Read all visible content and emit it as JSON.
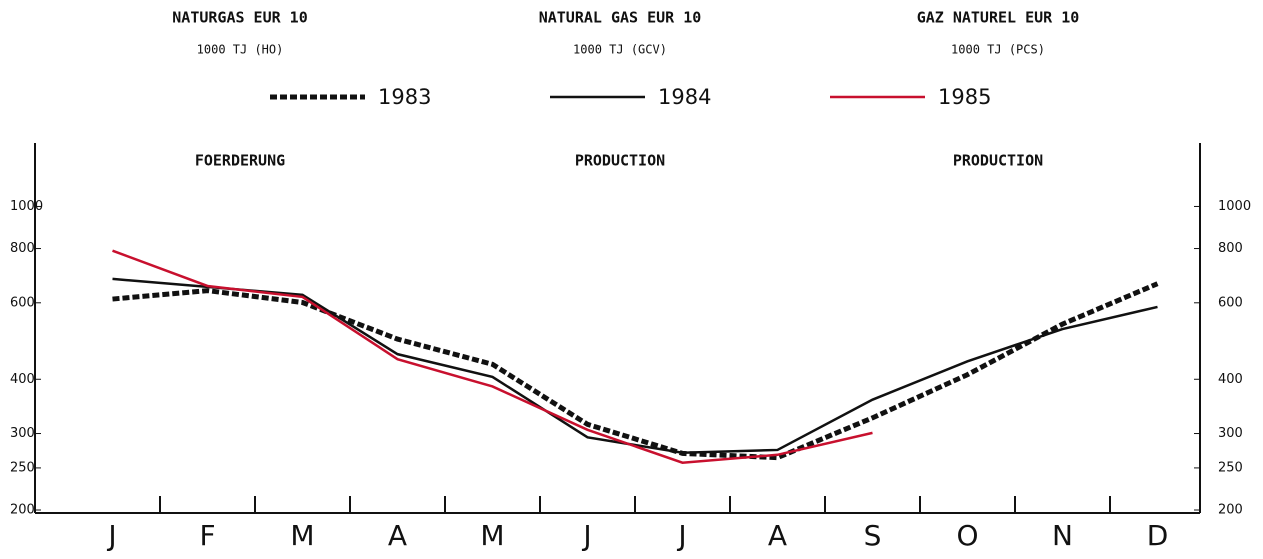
{
  "chart_data": {
    "type": "line",
    "titles": [
      "NATURGAS  EUR 10",
      "NATURAL GAS  EUR 10",
      "GAZ NATUREL  EUR 10"
    ],
    "subtitles": [
      "1000 TJ (HO)",
      "1000 TJ (GCV)",
      "1000 TJ (PCS)"
    ],
    "section_labels": [
      "FOERDERUNG",
      "PRODUCTION",
      "PRODUCTION"
    ],
    "categories": [
      "J",
      "F",
      "M",
      "A",
      "M",
      "J",
      "J",
      "A",
      "S",
      "O",
      "N",
      "D"
    ],
    "series": [
      {
        "name": "1983",
        "color": "#111111",
        "dash": true,
        "values": [
          612,
          640,
          601,
          495,
          433,
          315,
          270,
          264,
          326,
          410,
          536,
          664
        ]
      },
      {
        "name": "1984",
        "color": "#111111",
        "dash": false,
        "values": [
          681,
          653,
          626,
          457,
          405,
          294,
          271,
          275,
          359,
          440,
          522,
          587
        ]
      },
      {
        "name": "1985",
        "color": "#c8102e",
        "dash": false,
        "values": [
          791,
          656,
          619,
          445,
          385,
          306,
          257,
          268,
          301,
          null,
          null,
          null
        ]
      }
    ],
    "log_scale": true,
    "ylim": [
      200,
      1400
    ],
    "yticks": [
      200,
      250,
      300,
      400,
      600,
      800,
      1000
    ]
  }
}
